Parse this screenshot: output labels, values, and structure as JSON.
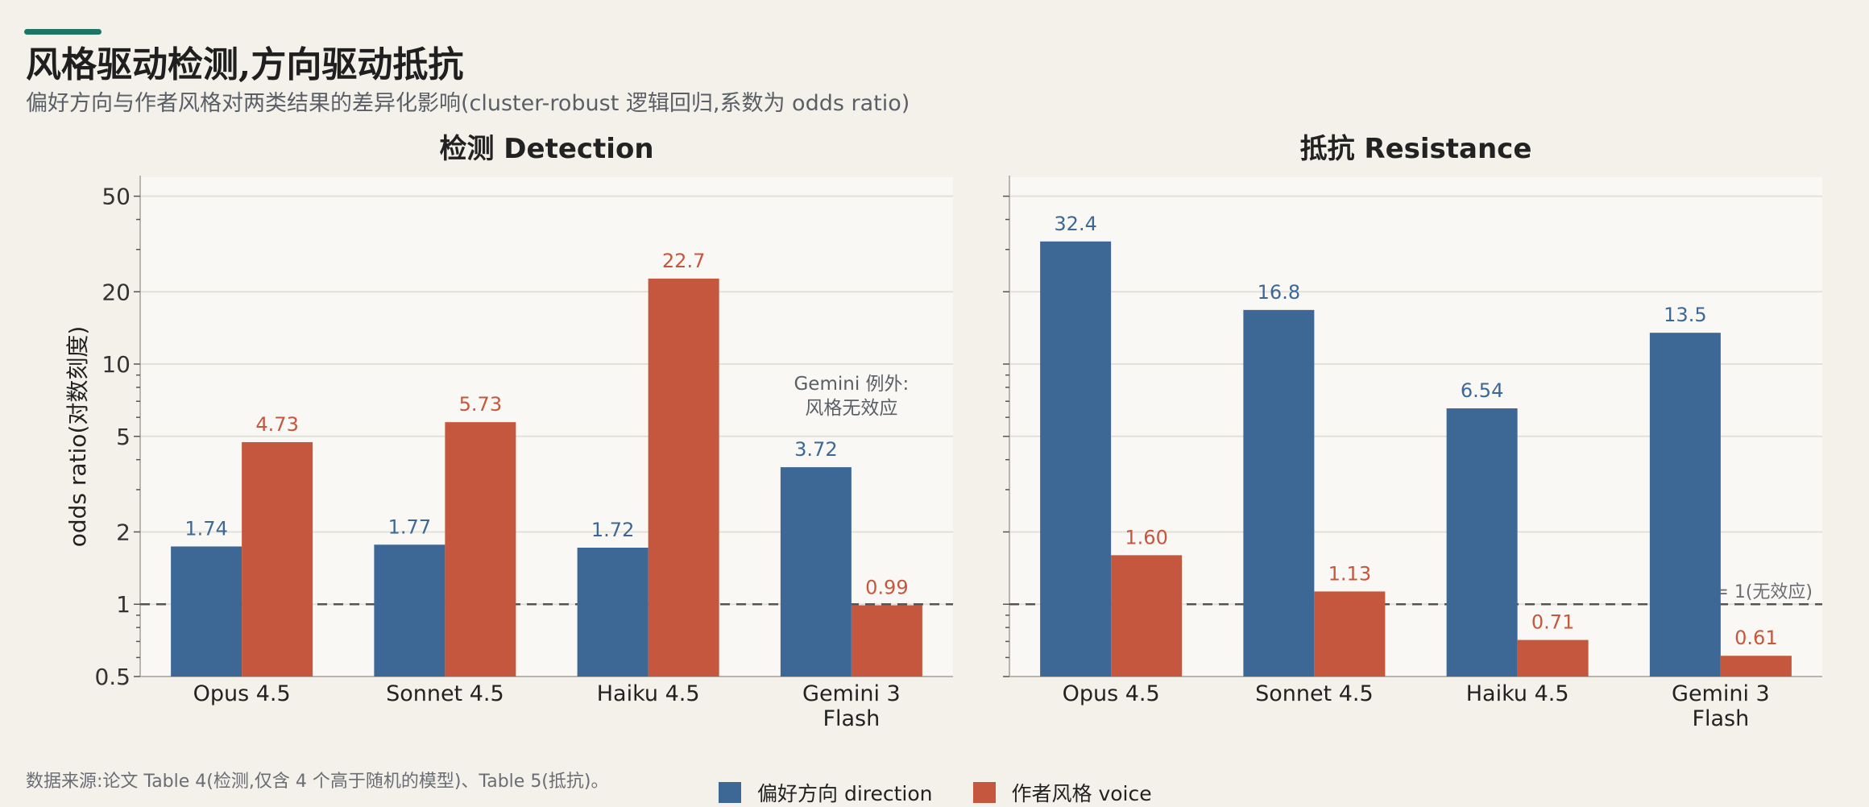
{
  "title": "风格驱动检测,方向驱动抵抗",
  "subtitle": "偏好方向与作者风格对两类结果的差异化影响(cluster-robust 逻辑回归,系数为 odds ratio)",
  "source": "数据来源:论文 Table 4(检测,仅含 4 个高于随机的模型)、Table 5(抵抗)。",
  "colors": {
    "direction": "#3d6896",
    "voice": "#c4573d",
    "accent": "#1d7566"
  },
  "legend": [
    {
      "label": "偏好方向 direction",
      "color": "#3d6896"
    },
    {
      "label": "作者风格 voice",
      "color": "#c4573d"
    }
  ],
  "chart_data": [
    {
      "type": "bar",
      "title": "检测 Detection",
      "ylabel": "odds ratio(对数刻度)",
      "yscale": "log",
      "ylim": [
        0.5,
        60
      ],
      "yticks": [
        "0.5",
        "1",
        "2",
        "5",
        "10",
        "20",
        "50"
      ],
      "grid": true,
      "categories": [
        [
          "Opus 4.5"
        ],
        [
          "Sonnet 4.5"
        ],
        [
          "Haiku 4.5"
        ],
        [
          "Gemini 3",
          "Flash"
        ]
      ],
      "series": [
        {
          "name": "偏好方向 direction",
          "values": [
            1.74,
            1.77,
            1.72,
            3.72
          ],
          "labels": [
            "1.74",
            "1.77",
            "1.72",
            "3.72"
          ]
        },
        {
          "name": "作者风格 voice",
          "values": [
            4.73,
            5.73,
            22.7,
            0.99
          ],
          "labels": [
            "4.73",
            "5.73",
            "22.7",
            "0.99"
          ]
        }
      ],
      "reference_line": {
        "value": 1,
        "label": ""
      },
      "annotation": {
        "lines": [
          "Gemini 例外:",
          "风格无效应"
        ]
      }
    },
    {
      "type": "bar",
      "title": "抵抗 Resistance",
      "ylabel": "",
      "yscale": "log",
      "ylim": [
        0.5,
        60
      ],
      "grid": true,
      "categories": [
        [
          "Opus 4.5"
        ],
        [
          "Sonnet 4.5"
        ],
        [
          "Haiku 4.5"
        ],
        [
          "Gemini 3",
          "Flash"
        ]
      ],
      "series": [
        {
          "name": "偏好方向 direction",
          "values": [
            32.4,
            16.8,
            6.54,
            13.5
          ],
          "labels": [
            "32.4",
            "16.8",
            "6.54",
            "13.5"
          ]
        },
        {
          "name": "作者风格 voice",
          "values": [
            1.6,
            1.13,
            0.71,
            0.61
          ],
          "labels": [
            "1.60",
            "1.13",
            "0.71",
            "0.61"
          ]
        }
      ],
      "reference_line": {
        "value": 1,
        "label": "OR = 1(无效应)"
      }
    }
  ]
}
